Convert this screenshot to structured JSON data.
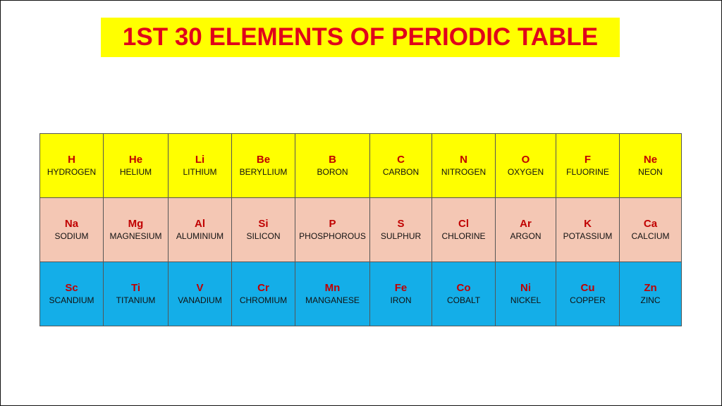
{
  "title": "1ST 30 ELEMENTS OF PERIODIC TABLE",
  "colors": {
    "title_bg": "#ffff00",
    "title_text": "#e0001b",
    "row1_bg": "#ffff00",
    "row2_bg": "#f4c7b4",
    "row3_bg": "#14aee8",
    "symbol_text": "#c00000"
  },
  "rows": [
    [
      {
        "symbol": "H",
        "name": "HYDROGEN"
      },
      {
        "symbol": "He",
        "name": "HELIUM"
      },
      {
        "symbol": "Li",
        "name": "LITHIUM"
      },
      {
        "symbol": "Be",
        "name": "BERYLLIUM"
      },
      {
        "symbol": "B",
        "name": "BORON"
      },
      {
        "symbol": "C",
        "name": "CARBON"
      },
      {
        "symbol": "N",
        "name": "NITROGEN"
      },
      {
        "symbol": "O",
        "name": "OXYGEN"
      },
      {
        "symbol": "F",
        "name": "FLUORINE"
      },
      {
        "symbol": "Ne",
        "name": "NEON"
      }
    ],
    [
      {
        "symbol": "Na",
        "name": "SODIUM"
      },
      {
        "symbol": "Mg",
        "name": "MAGNESIUM"
      },
      {
        "symbol": "Al",
        "name": "ALUMINIUM"
      },
      {
        "symbol": "Si",
        "name": "SILICON"
      },
      {
        "symbol": "P",
        "name": "PHOSPHOROUS"
      },
      {
        "symbol": "S",
        "name": "SULPHUR"
      },
      {
        "symbol": "Cl",
        "name": "CHLORINE"
      },
      {
        "symbol": "Ar",
        "name": "ARGON"
      },
      {
        "symbol": "K",
        "name": "POTASSIUM"
      },
      {
        "symbol": "Ca",
        "name": "CALCIUM"
      }
    ],
    [
      {
        "symbol": "Sc",
        "name": "SCANDIUM"
      },
      {
        "symbol": "Ti",
        "name": "TITANIUM"
      },
      {
        "symbol": "V",
        "name": "VANADIUM"
      },
      {
        "symbol": "Cr",
        "name": "CHROMIUM"
      },
      {
        "symbol": "Mn",
        "name": "MANGANESE"
      },
      {
        "symbol": "Fe",
        "name": "IRON"
      },
      {
        "symbol": "Co",
        "name": "COBALT"
      },
      {
        "symbol": "Ni",
        "name": "NICKEL"
      },
      {
        "symbol": "Cu",
        "name": "COPPER"
      },
      {
        "symbol": "Zn",
        "name": "ZINC"
      }
    ]
  ]
}
